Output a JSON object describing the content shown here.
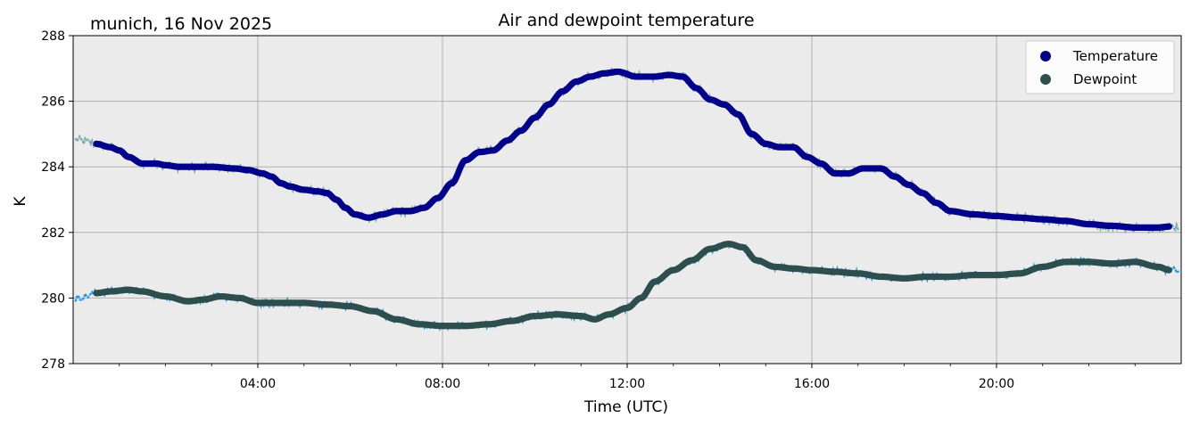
{
  "chart_data": {
    "type": "scatter",
    "title": "Air and dewpoint temperature",
    "location_date": "munich, 16 Nov 2025",
    "xlabel": "Time (UTC)",
    "ylabel": "K",
    "xlim_hours": [
      0,
      24
    ],
    "ylim": [
      278,
      288
    ],
    "x_ticks": [
      {
        "hour": 4,
        "label": "04:00"
      },
      {
        "hour": 8,
        "label": "08:00"
      },
      {
        "hour": 12,
        "label": "12:00"
      },
      {
        "hour": 16,
        "label": "16:00"
      },
      {
        "hour": 20,
        "label": "20:00"
      }
    ],
    "y_ticks": [
      {
        "value": 278,
        "label": "278"
      },
      {
        "value": 280,
        "label": "280"
      },
      {
        "value": 282,
        "label": "282"
      },
      {
        "value": 284,
        "label": "284"
      },
      {
        "value": 286,
        "label": "286"
      },
      {
        "value": 288,
        "label": "288"
      }
    ],
    "grid": true,
    "background": "#ebebeb",
    "legend_position": "top-right",
    "series": [
      {
        "name": "Temperature",
        "color": "#00008b",
        "raw_color": "#79a9a9",
        "points": [
          [
            0.5,
            284.7
          ],
          [
            0.8,
            284.6
          ],
          [
            1.0,
            284.5
          ],
          [
            1.2,
            284.3
          ],
          [
            1.5,
            284.1
          ],
          [
            1.8,
            284.1
          ],
          [
            2.0,
            284.05
          ],
          [
            2.3,
            284.0
          ],
          [
            2.7,
            284.0
          ],
          [
            3.0,
            284.0
          ],
          [
            3.5,
            283.95
          ],
          [
            3.8,
            283.9
          ],
          [
            4.1,
            283.8
          ],
          [
            4.3,
            283.7
          ],
          [
            4.5,
            283.5
          ],
          [
            4.7,
            283.4
          ],
          [
            5.0,
            283.3
          ],
          [
            5.3,
            283.25
          ],
          [
            5.5,
            283.2
          ],
          [
            5.7,
            283.0
          ],
          [
            5.9,
            282.75
          ],
          [
            6.1,
            282.55
          ],
          [
            6.4,
            282.45
          ],
          [
            6.7,
            282.55
          ],
          [
            7.0,
            282.65
          ],
          [
            7.3,
            282.65
          ],
          [
            7.6,
            282.75
          ],
          [
            7.9,
            283.05
          ],
          [
            8.2,
            283.5
          ],
          [
            8.5,
            284.2
          ],
          [
            8.8,
            284.45
          ],
          [
            9.1,
            284.5
          ],
          [
            9.4,
            284.8
          ],
          [
            9.7,
            285.1
          ],
          [
            10.0,
            285.5
          ],
          [
            10.3,
            285.9
          ],
          [
            10.6,
            286.3
          ],
          [
            10.9,
            286.6
          ],
          [
            11.2,
            286.75
          ],
          [
            11.5,
            286.85
          ],
          [
            11.8,
            286.9
          ],
          [
            12.2,
            286.75
          ],
          [
            12.6,
            286.75
          ],
          [
            12.9,
            286.8
          ],
          [
            13.2,
            286.75
          ],
          [
            13.5,
            286.4
          ],
          [
            13.8,
            286.05
          ],
          [
            14.1,
            285.9
          ],
          [
            14.4,
            285.6
          ],
          [
            14.7,
            285.0
          ],
          [
            15.0,
            284.7
          ],
          [
            15.3,
            284.6
          ],
          [
            15.6,
            284.6
          ],
          [
            15.9,
            284.3
          ],
          [
            16.2,
            284.1
          ],
          [
            16.5,
            283.8
          ],
          [
            16.8,
            283.8
          ],
          [
            17.1,
            283.95
          ],
          [
            17.5,
            283.95
          ],
          [
            17.8,
            283.7
          ],
          [
            18.1,
            283.45
          ],
          [
            18.4,
            283.2
          ],
          [
            18.7,
            282.9
          ],
          [
            19.0,
            282.65
          ],
          [
            19.5,
            282.55
          ],
          [
            20.0,
            282.5
          ],
          [
            20.5,
            282.45
          ],
          [
            21.0,
            282.4
          ],
          [
            21.5,
            282.35
          ],
          [
            22.0,
            282.25
          ],
          [
            22.5,
            282.2
          ],
          [
            23.0,
            282.15
          ],
          [
            23.5,
            282.15
          ],
          [
            23.75,
            282.18
          ]
        ]
      },
      {
        "name": "Dewpoint",
        "color": "#2f4f4f",
        "raw_color": "#1e9ae8",
        "points": [
          [
            0.5,
            280.15
          ],
          [
            0.8,
            280.2
          ],
          [
            1.2,
            280.25
          ],
          [
            1.5,
            280.2
          ],
          [
            2.0,
            280.05
          ],
          [
            2.5,
            279.9
          ],
          [
            2.8,
            279.95
          ],
          [
            3.2,
            280.05
          ],
          [
            3.6,
            280.0
          ],
          [
            4.0,
            279.85
          ],
          [
            4.5,
            279.85
          ],
          [
            5.0,
            279.85
          ],
          [
            5.5,
            279.8
          ],
          [
            6.0,
            279.75
          ],
          [
            6.5,
            279.6
          ],
          [
            7.0,
            279.35
          ],
          [
            7.5,
            279.2
          ],
          [
            8.0,
            279.15
          ],
          [
            8.5,
            279.15
          ],
          [
            9.0,
            279.2
          ],
          [
            9.5,
            279.3
          ],
          [
            10.0,
            279.45
          ],
          [
            10.5,
            279.5
          ],
          [
            11.0,
            279.45
          ],
          [
            11.3,
            279.35
          ],
          [
            11.6,
            279.5
          ],
          [
            12.0,
            279.7
          ],
          [
            12.3,
            280.0
          ],
          [
            12.6,
            280.5
          ],
          [
            13.0,
            280.85
          ],
          [
            13.4,
            281.15
          ],
          [
            13.8,
            281.5
          ],
          [
            14.2,
            281.65
          ],
          [
            14.5,
            281.55
          ],
          [
            14.8,
            281.15
          ],
          [
            15.2,
            280.95
          ],
          [
            15.6,
            280.9
          ],
          [
            16.0,
            280.85
          ],
          [
            16.5,
            280.8
          ],
          [
            17.0,
            280.75
          ],
          [
            17.5,
            280.65
          ],
          [
            18.0,
            280.6
          ],
          [
            18.5,
            280.65
          ],
          [
            19.0,
            280.65
          ],
          [
            19.5,
            280.7
          ],
          [
            20.0,
            280.7
          ],
          [
            20.5,
            280.75
          ],
          [
            21.0,
            280.95
          ],
          [
            21.5,
            281.1
          ],
          [
            22.0,
            281.1
          ],
          [
            22.5,
            281.05
          ],
          [
            23.0,
            281.1
          ],
          [
            23.5,
            280.95
          ],
          [
            23.75,
            280.85
          ]
        ]
      }
    ]
  }
}
